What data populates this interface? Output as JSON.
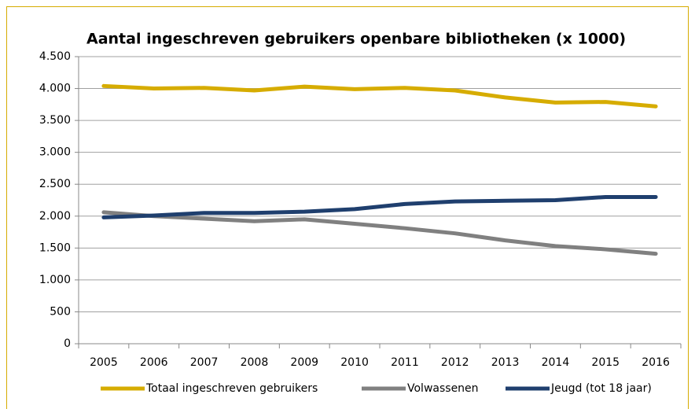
{
  "chart_data": {
    "type": "line",
    "title": "Aantal ingeschreven gebruikers openbare bibliotheken (x 1000)",
    "categories": [
      "2005",
      "2006",
      "2007",
      "2008",
      "2009",
      "2010",
      "2011",
      "2012",
      "2013",
      "2014",
      "2015",
      "2016"
    ],
    "series": [
      {
        "name": "Totaal ingeschreven gebruikers",
        "color": "#d6ac00",
        "values": [
          4040,
          4000,
          4010,
          3970,
          4030,
          3990,
          4010,
          3970,
          3860,
          3780,
          3790,
          3720
        ]
      },
      {
        "name": "Volwassenen",
        "color": "#808080",
        "values": [
          2060,
          2000,
          1960,
          1920,
          1950,
          1880,
          1810,
          1730,
          1620,
          1530,
          1480,
          1410
        ]
      },
      {
        "name": "Jeugd (tot 18 jaar)",
        "color": "#1f3f6e",
        "values": [
          1980,
          2010,
          2050,
          2050,
          2070,
          2110,
          2190,
          2230,
          2240,
          2250,
          2300,
          2300
        ]
      }
    ],
    "ylim": [
      0,
      4500
    ],
    "yticks": [
      0,
      500,
      {
        "value": 1000,
        "label": "1.000"
      },
      {
        "value": 1500,
        "label": "1.500"
      },
      {
        "value": 2000,
        "label": "2.000"
      },
      {
        "value": 2500,
        "label": "2.500"
      },
      {
        "value": 3000,
        "label": "3.000"
      },
      {
        "value": 3500,
        "label": "3.500"
      },
      {
        "value": 4000,
        "label": "4.000"
      },
      {
        "value": 4500,
        "label": "4.500"
      }
    ],
    "grid": true,
    "legend": "bottom"
  }
}
